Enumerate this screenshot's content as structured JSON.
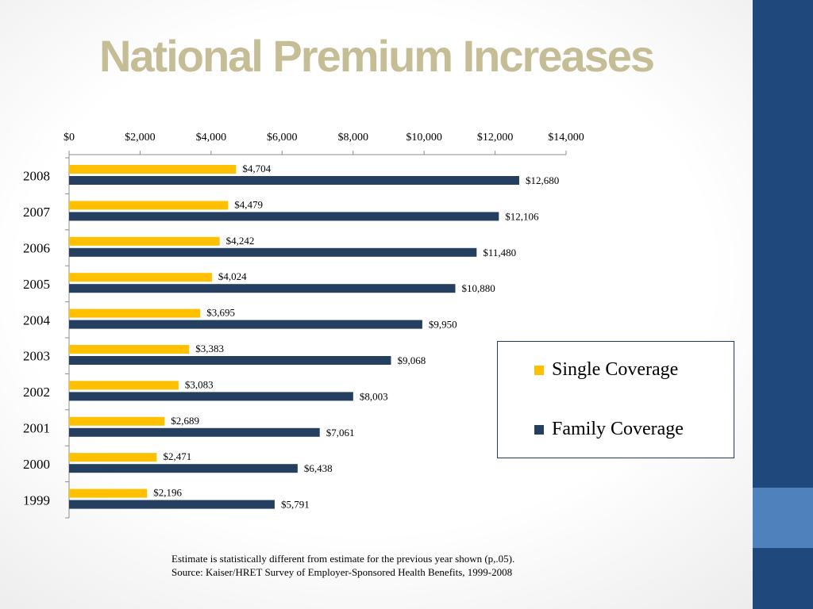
{
  "slide": {
    "title": "National Premium Increases"
  },
  "colors": {
    "single": "#ffc000",
    "family": "#243f60",
    "title": "#c5bd95",
    "band_dark": "#1f497d",
    "band_light": "#4f81bd"
  },
  "chart_data": {
    "type": "bar",
    "orientation": "horizontal",
    "title": "",
    "xlabel": "",
    "ylabel": "",
    "xlim": [
      0,
      14000
    ],
    "x_ticks": [
      "$0",
      "$2,000",
      "$4,000",
      "$6,000",
      "$8,000",
      "$10,000",
      "$12,000",
      "$14,000"
    ],
    "x_tick_values": [
      0,
      2000,
      4000,
      6000,
      8000,
      10000,
      12000,
      14000
    ],
    "axis_position": "top",
    "grid": false,
    "categories": [
      "2008",
      "2007",
      "2006",
      "2005",
      "2004",
      "2003",
      "2002",
      "2001",
      "2000",
      "1999"
    ],
    "series": [
      {
        "name": "Single Coverage",
        "values": [
          4704,
          4479,
          4242,
          4024,
          3695,
          3383,
          3083,
          2689,
          2471,
          2196
        ],
        "labels": [
          "$4,704",
          "$4,479",
          "$4,242",
          "$4,024",
          "$3,695",
          "$3,383",
          "$3,083",
          "$2,689",
          "$2,471",
          "$2,196"
        ]
      },
      {
        "name": "Family Coverage",
        "values": [
          12680,
          12106,
          11480,
          10880,
          9950,
          9068,
          8003,
          7061,
          6438,
          5791
        ],
        "labels": [
          "$12,680",
          "$12,106",
          "$11,480",
          "$10,880",
          "$9,950",
          "$9,068",
          "$8,003",
          "$7,061",
          "$6,438",
          "$5,791"
        ]
      }
    ],
    "legend_position": "right"
  },
  "legend": {
    "single_label": "Single Coverage",
    "family_label": "Family Coverage"
  },
  "footnote": {
    "line1": "Estimate is statistically different from estimate for the previous year shown (p,.05).",
    "line2": "Source: Kaiser/HRET Survey of Employer-Sponsored Health Benefits, 1999-2008"
  }
}
